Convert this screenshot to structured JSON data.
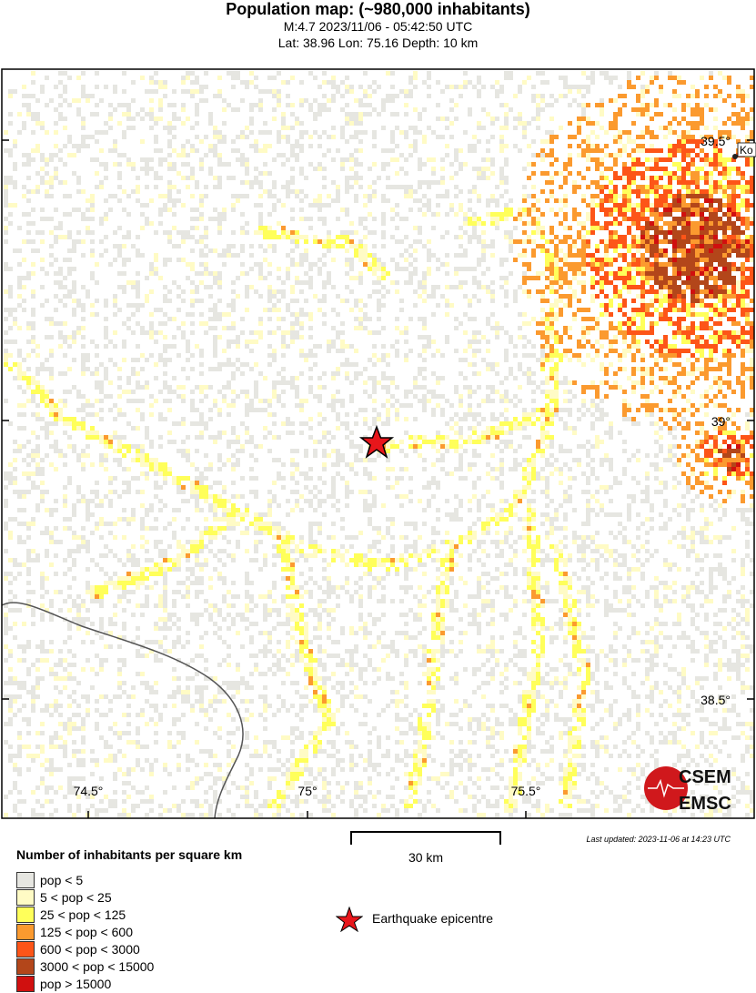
{
  "header": {
    "title": "Population map: (~980,000 inhabitants)",
    "line1": "M:4.7 2023/11/06 - 05:42:50 UTC",
    "line2": "Lat: 38.96 Lon: 75.16 Depth: 10 km"
  },
  "map": {
    "lon_ticks": [
      "74.5°",
      "75°",
      "75.5°"
    ],
    "lat_ticks": [
      "39.5°",
      "39°",
      "38.5°"
    ],
    "city_label": "Ko",
    "epicentre": {
      "lat": 38.96,
      "lon": 75.16,
      "icon": "red-star-icon",
      "color": "#e8161b"
    },
    "logo": {
      "top": "CSEM",
      "bottom": "EMSC"
    }
  },
  "scale": {
    "label": "30 km"
  },
  "updated": "Last updated: 2023-11-06 at 14:23 UTC",
  "legend": {
    "title": "Number of inhabitants per square km",
    "items": [
      {
        "label": "pop < 5",
        "color": "#e6e6e1"
      },
      {
        "label": "5 < pop < 25",
        "color": "#fffbc5"
      },
      {
        "label": "25 < pop < 125",
        "color": "#ffff5a"
      },
      {
        "label": "125 < pop < 600",
        "color": "#fb9a2f"
      },
      {
        "label": "600 < pop < 3000",
        "color": "#fd5518"
      },
      {
        "label": "3000 < pop < 15000",
        "color": "#b3461a"
      },
      {
        "label": "pop > 15000",
        "color": "#d0100f"
      }
    ],
    "epicentre_label": "Earthquake epicentre"
  }
}
